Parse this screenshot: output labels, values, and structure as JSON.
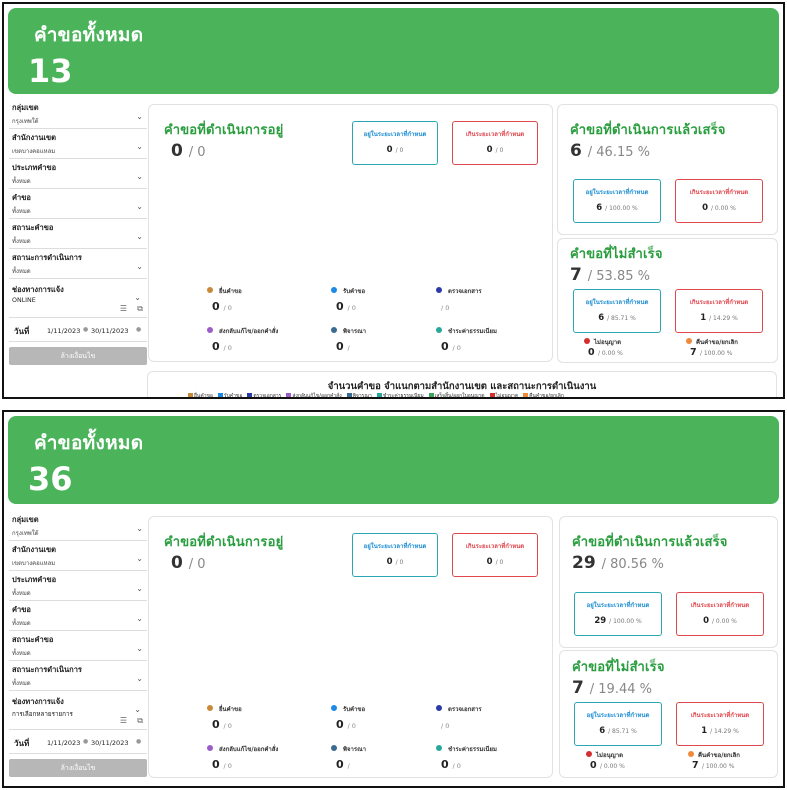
{
  "panels": [
    {
      "banner": {
        "title": "คำขอทั้งหมด",
        "count": "13"
      },
      "filters": {
        "group": {
          "label": "กลุ่มเขต",
          "value": "กรุงเทพใต้"
        },
        "office": {
          "label": "สำนักงานเขต",
          "value": "เขตบางคอแหลม"
        },
        "request_type": {
          "label": "ประเภทคำขอ",
          "value": "ทั้งหมด"
        },
        "request": {
          "label": "คำขอ",
          "value": "ทั้งหมด"
        },
        "status": {
          "label": "สถานะคำขอ",
          "value": "ทั้งหมด"
        },
        "process_status": {
          "label": "สถานะการดำเนินการ",
          "value": "ทั้งหมด"
        },
        "channel": {
          "label": "ช่องทางการแจ้ง",
          "value": "ONLINE"
        },
        "date": {
          "label": "วันที่",
          "from": "1/11/2023",
          "to": "30/11/2023"
        },
        "clear_label": "ล้างเงื่อนไข"
      },
      "ongoing": {
        "title": "คำขอที่ดำเนินการอยู่",
        "count": "0",
        "sub": "/ 0",
        "in_time": {
          "label": "อยู่ในระยะเวลาที่กำหนด",
          "value": "0",
          "sub": "/ 0"
        },
        "over_time": {
          "label": "เกินระยะเวลาที่กำหนด",
          "value": "0",
          "sub": "/ 0"
        },
        "stats": [
          {
            "label": "ยื่นคำขอ",
            "value": "0",
            "sub": "/ 0",
            "color": "#c8893a"
          },
          {
            "label": "รับคำขอ",
            "value": "0",
            "sub": "/ 0",
            "color": "#1e88e5"
          },
          {
            "label": "ตรวจเอกสาร",
            "value": "",
            "sub": "/ 0",
            "color": "#2b3aa8"
          },
          {
            "label": "ส่งกลับแก้ไข/ออกคำสั่ง",
            "value": "0",
            "sub": "/ 0",
            "color": "#9a5ec9"
          },
          {
            "label": "พิจารณา",
            "value": "0",
            "sub": "/",
            "color": "#3a6b93"
          },
          {
            "label": "ชำระค่าธรรมเนียม",
            "value": "0",
            "sub": "/ 0",
            "color": "#2aa79b"
          }
        ]
      },
      "done": {
        "title": "คำขอที่ดำเนินการแล้วเสร็จ",
        "count": "6",
        "sub": "/ 46.15 %",
        "in_time": {
          "label": "อยู่ในระยะเวลาที่กำหนด",
          "value": "6",
          "sub": "/ 100.00 %"
        },
        "over_time": {
          "label": "เกินระยะเวลาที่กำหนด",
          "value": "0",
          "sub": "/ 0.00 %"
        }
      },
      "failed": {
        "title": "คำขอที่ไม่สำเร็จ",
        "count": "7",
        "sub": "/ 53.85 %",
        "in_time": {
          "label": "อยู่ในระยะเวลาที่กำหนด",
          "value": "6",
          "sub": "/ 85.71 %"
        },
        "over_time": {
          "label": "เกินระยะเวลาที่กำหนด",
          "value": "1",
          "sub": "/ 14.29 %"
        },
        "not_allowed": {
          "label": "ไม่อนุญาต",
          "value": "0",
          "sub": "/ 0.00 %",
          "color": "#d32f2f"
        },
        "withdrawn": {
          "label": "คืนคำขอ/ยกเลิก",
          "value": "7",
          "sub": "/ 100.00 %",
          "color": "#f0893c"
        }
      },
      "chart": {
        "title": "จำนวนคำขอ  จำแนกตามสำนักงานเขต และสถานะการดำเนินงาน",
        "legend": [
          {
            "label": "ยื่นคำขอ",
            "color": "#c8893a"
          },
          {
            "label": "รับคำขอ",
            "color": "#1e88e5"
          },
          {
            "label": "ตรวจเอกสาร",
            "color": "#2b3aa8"
          },
          {
            "label": "ส่งกลับแก้ไข/ออกคำสั่ง",
            "color": "#9a5ec9"
          },
          {
            "label": "พิจารณา",
            "color": "#3a6b93"
          },
          {
            "label": "ชำระค่าธรรมเนียม",
            "color": "#2aa79b"
          },
          {
            "label": "เสร็จสิ้น/ออกใบอนุญาต",
            "color": "#3ba55c"
          },
          {
            "label": "ไม่อนุญาต",
            "color": "#d32f2f"
          },
          {
            "label": "คืนคำขอ/ยกเลิก",
            "color": "#f0893c"
          }
        ]
      }
    },
    {
      "banner": {
        "title": "คำขอทั้งหมด",
        "count": "36"
      },
      "filters": {
        "group": {
          "label": "กลุ่มเขต",
          "value": "กรุงเทพใต้"
        },
        "office": {
          "label": "สำนักงานเขต",
          "value": "เขตบางคอแหลม"
        },
        "request_type": {
          "label": "ประเภทคำขอ",
          "value": "ทั้งหมด"
        },
        "request": {
          "label": "คำขอ",
          "value": "ทั้งหมด"
        },
        "status": {
          "label": "สถานะคำขอ",
          "value": "ทั้งหมด"
        },
        "process_status": {
          "label": "สถานะการดำเนินการ",
          "value": "ทั้งหมด"
        },
        "channel": {
          "label": "ช่องทางการแจ้ง",
          "value": "การเลือกหลายรายการ"
        },
        "date": {
          "label": "วันที่",
          "from": "1/11/2023",
          "to": "30/11/2023"
        },
        "clear_label": "ล้างเงื่อนไข"
      },
      "ongoing": {
        "title": "คำขอที่ดำเนินการอยู่",
        "count": "0",
        "sub": "/ 0",
        "in_time": {
          "label": "อยู่ในระยะเวลาที่กำหนด",
          "value": "0",
          "sub": "/ 0"
        },
        "over_time": {
          "label": "เกินระยะเวลาที่กำหนด",
          "value": "0",
          "sub": "/ 0"
        },
        "stats": [
          {
            "label": "ยื่นคำขอ",
            "value": "0",
            "sub": "/ 0",
            "color": "#c8893a"
          },
          {
            "label": "รับคำขอ",
            "value": "0",
            "sub": "/ 0",
            "color": "#1e88e5"
          },
          {
            "label": "ตรวจเอกสาร",
            "value": "",
            "sub": "/ 0",
            "color": "#2b3aa8"
          },
          {
            "label": "ส่งกลับแก้ไข/ออกคำสั่ง",
            "value": "0",
            "sub": "/ 0",
            "color": "#9a5ec9"
          },
          {
            "label": "พิจารณา",
            "value": "0",
            "sub": "/",
            "color": "#3a6b93"
          },
          {
            "label": "ชำระค่าธรรมเนียม",
            "value": "0",
            "sub": "/ 0",
            "color": "#2aa79b"
          }
        ]
      },
      "done": {
        "title": "คำขอที่ดำเนินการแล้วเสร็จ",
        "count": "29",
        "sub": "/ 80.56 %",
        "in_time": {
          "label": "อยู่ในระยะเวลาที่กำหนด",
          "value": "29",
          "sub": "/ 100.00 %"
        },
        "over_time": {
          "label": "เกินระยะเวลาที่กำหนด",
          "value": "0",
          "sub": "/ 0.00 %"
        }
      },
      "failed": {
        "title": "คำขอที่ไม่สำเร็จ",
        "count": "7",
        "sub": "/ 19.44 %",
        "in_time": {
          "label": "อยู่ในระยะเวลาที่กำหนด",
          "value": "6",
          "sub": "/ 85.71 %"
        },
        "over_time": {
          "label": "เกินระยะเวลาที่กำหนด",
          "value": "1",
          "sub": "/ 14.29 %"
        },
        "not_allowed": {
          "label": "ไม่อนุญาต",
          "value": "0",
          "sub": "/ 0.00 %",
          "color": "#d32f2f"
        },
        "withdrawn": {
          "label": "คืนคำขอ/ยกเลิก",
          "value": "7",
          "sub": "/ 100.00 %",
          "color": "#f0893c"
        }
      }
    }
  ]
}
